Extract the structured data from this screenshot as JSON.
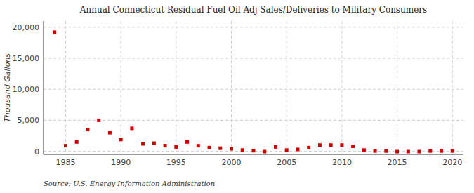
{
  "chart_data": {
    "type": "scatter",
    "title": "Annual Connecticut Residual Fuel Oil Adj Sales/Deliveries to Military Consumers",
    "ylabel": "Thousand Gallons",
    "annotations": [
      "Source: U.S. Energy Information Administration"
    ],
    "x": [
      1984,
      1985,
      1986,
      1987,
      1988,
      1989,
      1990,
      1991,
      1992,
      1993,
      1994,
      1995,
      1996,
      1997,
      1998,
      1999,
      2000,
      2001,
      2002,
      2003,
      2004,
      2005,
      2006,
      2007,
      2008,
      2009,
      2010,
      2011,
      2012,
      2013,
      2014,
      2015,
      2016,
      2017,
      2018,
      2019,
      2020
    ],
    "values": [
      19200,
      900,
      1500,
      3500,
      5000,
      3000,
      1900,
      3700,
      1200,
      1300,
      900,
      700,
      1500,
      900,
      600,
      500,
      400,
      200,
      100,
      -50,
      700,
      200,
      300,
      600,
      1000,
      1000,
      1000,
      800,
      200,
      50,
      50,
      -50,
      -50,
      -50,
      50,
      50,
      50
    ],
    "color": "#cc0000",
    "marker": "square",
    "xlim": [
      1983,
      2021
    ],
    "ylim": [
      -500,
      21000
    ],
    "xticks": [
      1985,
      1990,
      1995,
      2000,
      2005,
      2010,
      2015,
      2020
    ],
    "yticks": [
      0,
      {
        "value": 5000,
        "label": "5,000"
      },
      {
        "value": 10000,
        "label": "10,000"
      },
      {
        "value": 15000,
        "label": "15,000"
      },
      {
        "value": 20000,
        "label": "20,000"
      }
    ],
    "grid": true
  }
}
